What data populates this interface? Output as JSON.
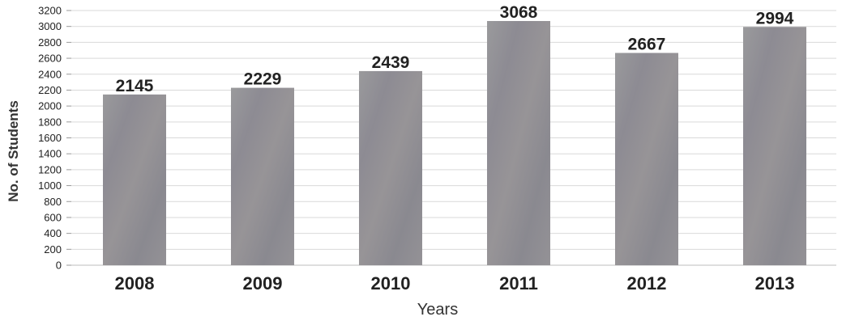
{
  "chart_data": {
    "type": "bar",
    "categories": [
      "2008",
      "2009",
      "2010",
      "2011",
      "2012",
      "2013"
    ],
    "values": [
      2145,
      2229,
      2439,
      3068,
      2667,
      2994
    ],
    "title": "",
    "xlabel": "Years",
    "ylabel": "No. of Students",
    "ylim": [
      0,
      3200
    ],
    "yticks": [
      0,
      200,
      400,
      600,
      800,
      1000,
      1200,
      1400,
      1600,
      1800,
      2000,
      2200,
      2400,
      2600,
      2800,
      3000,
      3200
    ],
    "grid": true,
    "legend": "none",
    "bar_color": "#8f8c92",
    "grid_color": "#d9d9d9"
  }
}
